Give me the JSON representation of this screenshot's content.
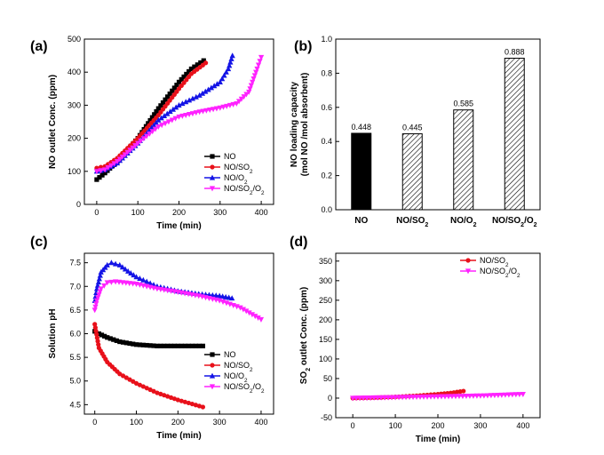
{
  "chart_data": [
    {
      "panel": "(a)",
      "type": "line",
      "xlabel": "Time (min)",
      "ylabel": "NO outlet Conc. (ppm)",
      "xlim": [
        -30,
        430
      ],
      "ylim": [
        0,
        500
      ],
      "xticks": [
        "0",
        "100",
        "200",
        "300",
        "400"
      ],
      "yticks": [
        "0",
        "100",
        "200",
        "300",
        "400",
        "500"
      ],
      "legend_position": "bottom-right",
      "series": [
        {
          "name": "NO",
          "color": "#000000",
          "marker": "square",
          "x": [
            0,
            20,
            50,
            100,
            150,
            200,
            230,
            260
          ],
          "y": [
            75,
            95,
            130,
            200,
            290,
            370,
            410,
            435
          ]
        },
        {
          "name": "NO/SO2",
          "color": "#e8101a",
          "marker": "circle",
          "x": [
            0,
            20,
            50,
            100,
            150,
            200,
            230,
            265
          ],
          "y": [
            110,
            115,
            140,
            200,
            270,
            350,
            395,
            428
          ]
        },
        {
          "name": "NO/O2",
          "color": "#1414e6",
          "marker": "triangle-up",
          "x": [
            0,
            20,
            50,
            100,
            150,
            200,
            250,
            300,
            320,
            330
          ],
          "y": [
            100,
            105,
            125,
            185,
            255,
            300,
            330,
            370,
            410,
            450
          ]
        },
        {
          "name": "NO/SO2/O2",
          "color": "#ff22ff",
          "marker": "triangle-down",
          "x": [
            0,
            20,
            50,
            100,
            150,
            200,
            250,
            300,
            340,
            370,
            390,
            400
          ],
          "y": [
            100,
            105,
            130,
            185,
            235,
            265,
            280,
            292,
            305,
            340,
            410,
            445
          ]
        }
      ]
    },
    {
      "panel": "(b)",
      "type": "bar",
      "ylabel": "NO loading capacity (mol NO /mol absorbent)",
      "ylim": [
        0,
        1.0
      ],
      "yticks": [
        "0.0",
        "0.2",
        "0.4",
        "0.6",
        "0.8",
        "1.0"
      ],
      "categories": [
        "NO",
        "NO/SO2",
        "NO/O2",
        "NO/SO2/O2"
      ],
      "values": [
        0.448,
        0.445,
        0.585,
        0.888
      ],
      "value_labels": [
        "0.448",
        "0.445",
        "0.585",
        "0.888"
      ],
      "fills": [
        "solid",
        "hatched",
        "hatched",
        "hatched"
      ]
    },
    {
      "panel": "(c)",
      "type": "line",
      "xlabel": "Time (min)",
      "ylabel": "Solution pH",
      "xlim": [
        -25,
        430
      ],
      "ylim": [
        4.3,
        7.7
      ],
      "xticks": [
        "0",
        "100",
        "200",
        "300",
        "400"
      ],
      "yticks": [
        "4.5",
        "5.0",
        "5.5",
        "6.0",
        "6.5",
        "7.0",
        "7.5"
      ],
      "legend_position": "bottom-right",
      "series": [
        {
          "name": "NO",
          "color": "#000000",
          "marker": "square",
          "x": [
            0,
            10,
            30,
            60,
            100,
            150,
            200,
            260
          ],
          "y": [
            6.05,
            6.0,
            5.92,
            5.83,
            5.77,
            5.74,
            5.74,
            5.74
          ]
        },
        {
          "name": "NO/SO2",
          "color": "#e8101a",
          "marker": "circle",
          "x": [
            0,
            10,
            30,
            60,
            100,
            150,
            200,
            260
          ],
          "y": [
            6.2,
            5.7,
            5.4,
            5.15,
            4.95,
            4.75,
            4.6,
            4.45
          ]
        },
        {
          "name": "NO/O2",
          "color": "#1414e6",
          "marker": "triangle-up",
          "x": [
            0,
            5,
            15,
            30,
            40,
            60,
            80,
            100,
            150,
            200,
            250,
            300,
            330
          ],
          "y": [
            6.7,
            6.95,
            7.3,
            7.45,
            7.5,
            7.45,
            7.32,
            7.2,
            7.0,
            6.9,
            6.84,
            6.8,
            6.75
          ]
        },
        {
          "name": "NO/SO2/O2",
          "color": "#ff22ff",
          "marker": "triangle-down",
          "x": [
            0,
            5,
            15,
            30,
            50,
            100,
            150,
            200,
            250,
            300,
            350,
            400
          ],
          "y": [
            6.5,
            6.7,
            6.95,
            7.08,
            7.1,
            7.05,
            6.95,
            6.88,
            6.8,
            6.7,
            6.55,
            6.3
          ]
        }
      ]
    },
    {
      "panel": "(d)",
      "type": "line",
      "xlabel": "Time (min)",
      "ylabel": "SO2 outlet Conc. (ppm)",
      "xlim": [
        -40,
        440
      ],
      "ylim": [
        -50,
        370
      ],
      "xticks": [
        "0",
        "100",
        "200",
        "300",
        "400"
      ],
      "yticks": [
        "-50",
        "0",
        "50",
        "100",
        "150",
        "200",
        "250",
        "300",
        "350"
      ],
      "legend_position": "top-right",
      "series": [
        {
          "name": "NO/SO2",
          "color": "#e8101a",
          "marker": "circle",
          "x": [
            0,
            50,
            100,
            150,
            200,
            230,
            260
          ],
          "y": [
            0,
            1,
            3,
            6,
            10,
            13,
            18
          ]
        },
        {
          "name": "NO/SO2/O2",
          "color": "#ff22ff",
          "marker": "triangle-down",
          "x": [
            0,
            50,
            100,
            150,
            200,
            250,
            300,
            350,
            400
          ],
          "y": [
            0,
            1,
            2,
            3,
            4,
            5,
            6,
            8,
            10
          ]
        }
      ]
    }
  ]
}
